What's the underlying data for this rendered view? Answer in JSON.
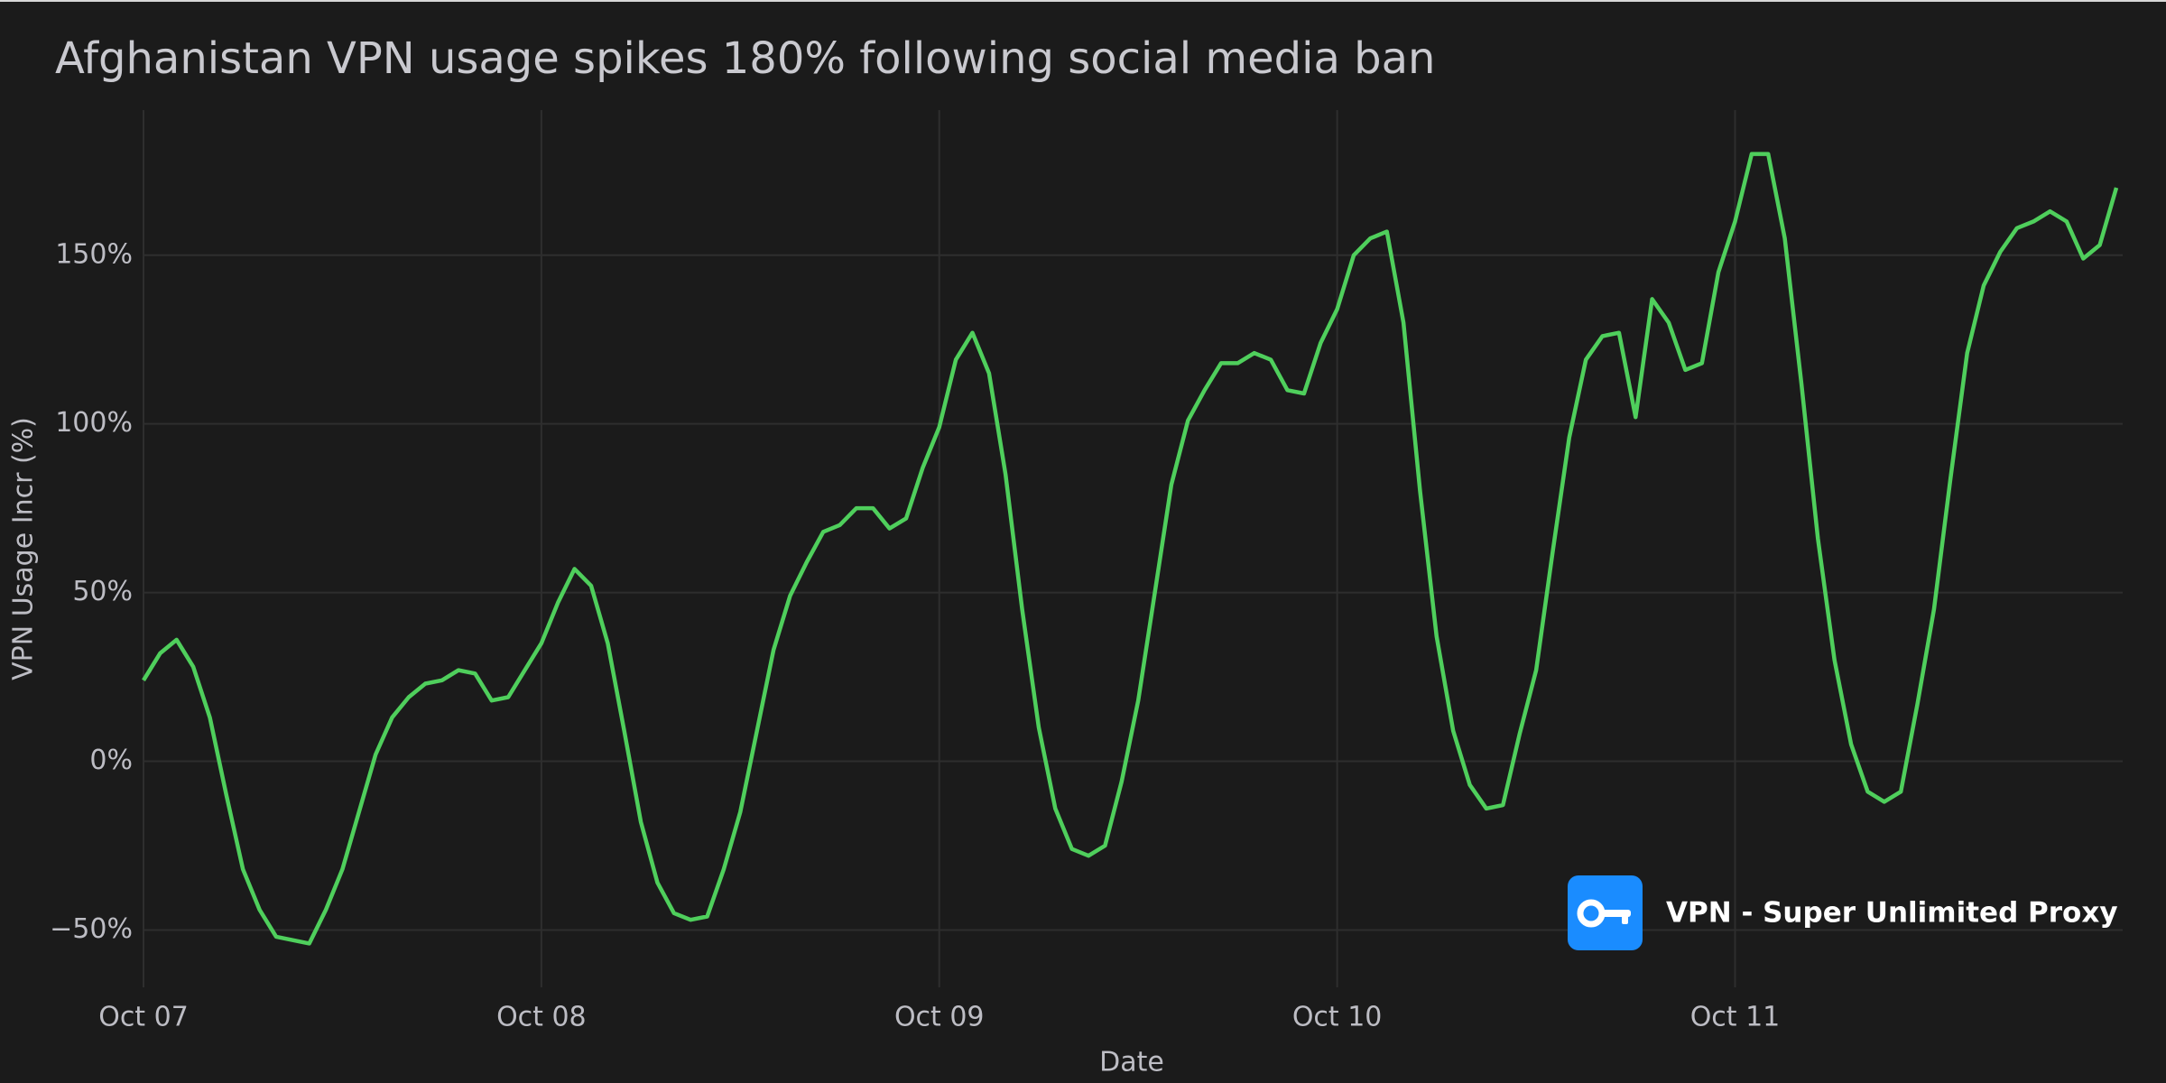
{
  "chart_data": {
    "type": "line",
    "title": "Afghanistan VPN usage spikes 180% following social media ban",
    "x_label": "Date",
    "y_label": "VPN Usage Incr (%)",
    "watermark": "VPN - Super Unlimited Proxy",
    "x": [
      0,
      1,
      2,
      3,
      4,
      5,
      6,
      7,
      8,
      9,
      10,
      11,
      12,
      13,
      14,
      15,
      16,
      17,
      18,
      19,
      20,
      21,
      22,
      23,
      24,
      25,
      26,
      27,
      28,
      29,
      30,
      31,
      32,
      33,
      34,
      35,
      36,
      37,
      38,
      39,
      40,
      41,
      42,
      43,
      44,
      45,
      46,
      47,
      48,
      49,
      50,
      51,
      52,
      53,
      54,
      55,
      56,
      57,
      58,
      59,
      60,
      61,
      62,
      63,
      64,
      65,
      66,
      67,
      68,
      69,
      70,
      71,
      72,
      73,
      74,
      75,
      76,
      77,
      78,
      79,
      80,
      81,
      82,
      83,
      84,
      85,
      86,
      87,
      88,
      89,
      90,
      91,
      92,
      93,
      94,
      95,
      96,
      97,
      98,
      99,
      100,
      101,
      102,
      103,
      104,
      105,
      106,
      107,
      108,
      109,
      110,
      111,
      112,
      113,
      114,
      115,
      116,
      117,
      118,
      119
    ],
    "series": [
      {
        "name": "VPN Usage Incr (%)",
        "color": "#4fcf5c",
        "values": [
          24,
          32,
          36,
          28,
          13,
          -10,
          -32,
          -44,
          -52,
          -53,
          -54,
          -44,
          -32,
          -15,
          2,
          13,
          19,
          23,
          24,
          27,
          26,
          18,
          19,
          27,
          35,
          47,
          57,
          52,
          35,
          9,
          -18,
          -36,
          -45,
          -47,
          -46,
          -32,
          -15,
          9,
          33,
          49,
          59,
          68,
          70,
          75,
          75,
          69,
          72,
          87,
          99,
          119,
          127,
          115,
          85,
          45,
          10,
          -14,
          -26,
          -28,
          -25,
          -6,
          18,
          50,
          82,
          101,
          110,
          118,
          118,
          121,
          119,
          110,
          109,
          124,
          134,
          150,
          155,
          157,
          130,
          80,
          37,
          9,
          -7,
          -14,
          -13,
          8,
          27,
          62,
          96,
          119,
          126,
          127,
          102,
          137,
          130,
          116,
          118,
          145,
          160,
          180,
          180,
          155,
          112,
          66,
          30,
          5,
          -9,
          -12,
          -9,
          17,
          45,
          84,
          121,
          141,
          151,
          158,
          160,
          163,
          160,
          149,
          153,
          170
        ]
      }
    ],
    "xlim": [
      0,
      119
    ],
    "xticks": [
      {
        "value": 0,
        "label": "Oct 07"
      },
      {
        "value": 24,
        "label": "Oct 08"
      },
      {
        "value": 48,
        "label": "Oct 09"
      },
      {
        "value": 72,
        "label": "Oct 10"
      },
      {
        "value": 96,
        "label": "Oct 11"
      }
    ],
    "ylim": [
      -67,
      193
    ],
    "yticks": [
      {
        "value": -50,
        "label": "−50%"
      },
      {
        "value": 0,
        "label": "0%"
      },
      {
        "value": 50,
        "label": "50%"
      },
      {
        "value": 100,
        "label": "100%"
      },
      {
        "value": 150,
        "label": "150%"
      }
    ],
    "grid": true
  }
}
